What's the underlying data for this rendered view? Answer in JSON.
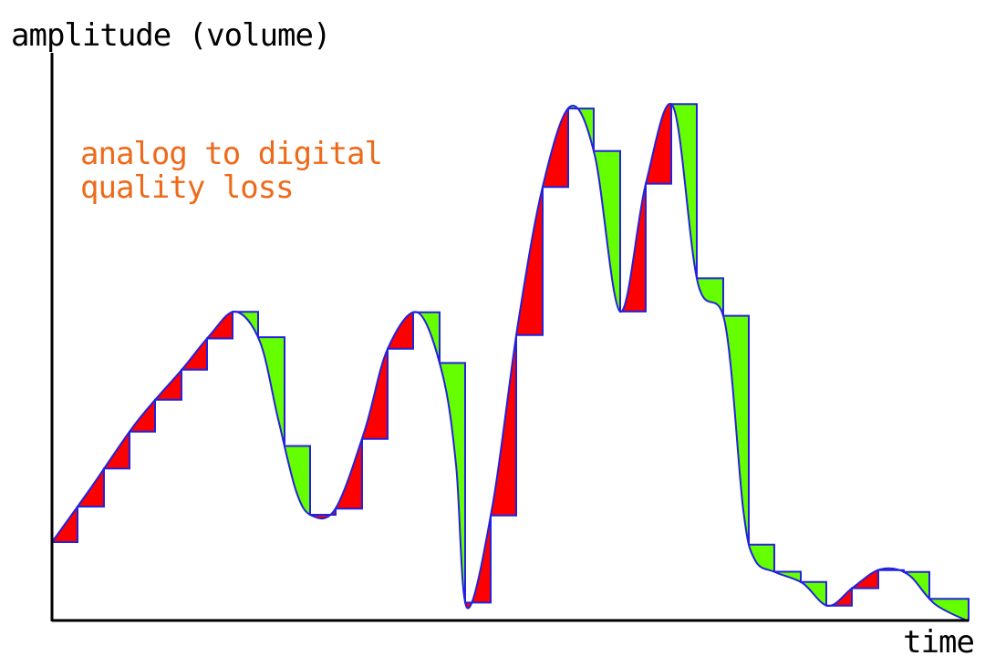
{
  "labels": {
    "y_axis": "amplitude (volume)",
    "x_axis": "time",
    "annotation_line1": "analog to digital",
    "annotation_line2": "quality loss"
  },
  "colors": {
    "axis": "#000000",
    "signal": "#2222dd",
    "error_under": "#ff0000",
    "error_over": "#66ff00",
    "annotation": "#ee6a1a"
  },
  "legend": {
    "analog_signal": "smooth blue curve",
    "quantized_signal": "blue staircase",
    "red_fill": "sampled value below the analog signal",
    "green_fill": "sampled value above the analog signal"
  }
}
